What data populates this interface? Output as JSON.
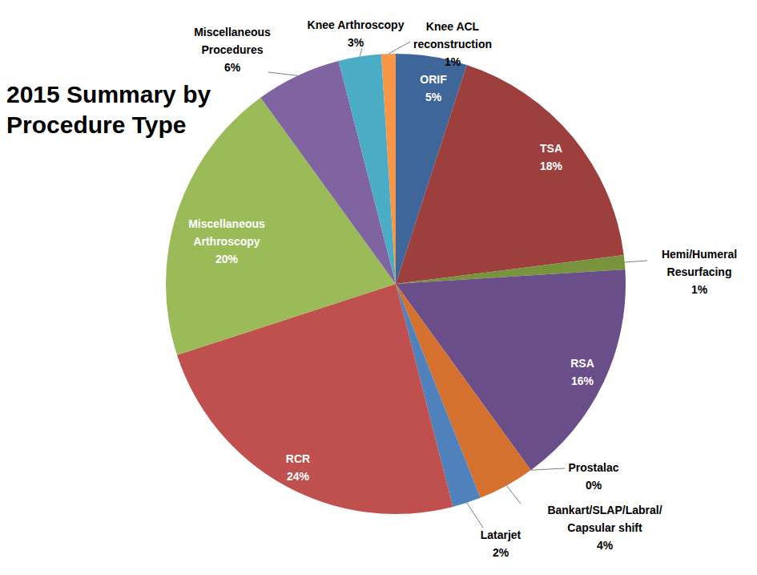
{
  "chart_data": {
    "type": "pie",
    "title": "2015 Summary by\nProcedure Type",
    "categories": [
      "ORIF",
      "TSA",
      "Hemi/Humeral\nResurfacing",
      "RSA",
      "Prostalac",
      "Bankart/SLAP/Labral/\nCapsular shift",
      "Latarjet",
      "RCR",
      "Miscellaneous\nArthroscopy",
      "Miscellaneous\nProcedures",
      "Knee Arthroscopy",
      "Knee ACL\nreconstruction"
    ],
    "values": [
      5,
      18,
      1,
      16,
      0,
      4,
      2,
      24,
      20,
      6,
      3,
      1
    ],
    "value_labels": [
      "5%",
      "18%",
      "1%",
      "16%",
      "0%",
      "4%",
      "2%",
      "24%",
      "20%",
      "6%",
      "3%",
      "1%"
    ],
    "colors": [
      "#3f6698",
      "#9c3f3d",
      "#77933c",
      "#6a4e8a",
      "#2e8ba5",
      "#d4712f",
      "#4f81bd",
      "#c0504d",
      "#9bbb59",
      "#8064a2",
      "#4bacc6",
      "#f79646"
    ],
    "data_labels": true
  }
}
